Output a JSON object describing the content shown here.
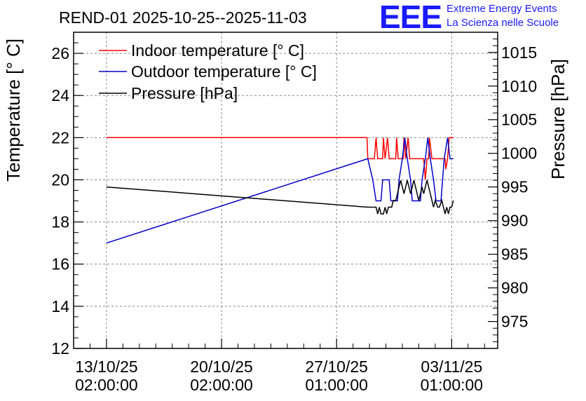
{
  "chart_data": {
    "type": "line",
    "title": "REND-01 2025-10-25--2025-11-03",
    "logo": {
      "mark": "EEE",
      "line1": "Extreme Energy Events",
      "line2": "La Scienza nelle Scuole",
      "color": "#1a1aff"
    },
    "xlabel": "",
    "ylabel_left": "Temperature [° C]",
    "ylabel_right": "Pressure [hPa]",
    "x_ticks": [
      {
        "day": 0,
        "line1": "13/10/25",
        "line2": "02:00:00"
      },
      {
        "day": 7,
        "line1": "20/10/25",
        "line2": "02:00:00"
      },
      {
        "day": 14,
        "line1": "27/10/25",
        "line2": "01:00:00"
      },
      {
        "day": 21,
        "line1": "03/11/25",
        "line2": "01:00:00"
      }
    ],
    "xlim": [
      -2,
      23.8
    ],
    "ylim_left": [
      12,
      27
    ],
    "yticks_left": [
      12,
      14,
      16,
      18,
      20,
      22,
      24,
      26
    ],
    "ylim_right": [
      971,
      1018
    ],
    "yticks_right": [
      975,
      980,
      985,
      990,
      995,
      1000,
      1005,
      1010,
      1015
    ],
    "grid": true,
    "legend_position": "top-left",
    "series": [
      {
        "name": "Indoor temperature [° C]",
        "axis": "left",
        "color": "#ff0000",
        "points": [
          [
            0,
            22
          ],
          [
            15.85,
            22
          ],
          [
            15.9,
            21
          ],
          [
            16.3,
            21
          ],
          [
            16.4,
            22
          ],
          [
            16.5,
            21
          ],
          [
            16.8,
            21
          ],
          [
            16.85,
            22
          ],
          [
            16.95,
            21
          ],
          [
            17.1,
            22
          ],
          [
            17.2,
            21
          ],
          [
            17.6,
            21
          ],
          [
            17.65,
            22
          ],
          [
            17.75,
            21
          ],
          [
            18.05,
            21
          ],
          [
            18.1,
            22
          ],
          [
            18.2,
            21
          ],
          [
            18.35,
            22
          ],
          [
            18.45,
            21
          ],
          [
            19.3,
            21
          ],
          [
            19.35,
            20.5
          ],
          [
            19.4,
            20
          ],
          [
            19.5,
            21
          ],
          [
            19.6,
            21
          ],
          [
            19.65,
            22
          ],
          [
            19.8,
            21
          ],
          [
            20.6,
            21
          ],
          [
            20.65,
            20.5
          ],
          [
            20.75,
            21
          ],
          [
            20.85,
            22
          ],
          [
            21.1,
            22
          ]
        ]
      },
      {
        "name": "Outdoor temperature [° C]",
        "axis": "left",
        "color": "#0000cc",
        "points": [
          [
            0,
            17
          ],
          [
            15.9,
            21
          ],
          [
            16.2,
            20
          ],
          [
            16.4,
            19
          ],
          [
            16.7,
            19
          ],
          [
            16.8,
            20
          ],
          [
            17.2,
            20
          ],
          [
            17.3,
            19
          ],
          [
            17.7,
            19
          ],
          [
            17.8,
            20
          ],
          [
            18.0,
            21
          ],
          [
            18.15,
            22
          ],
          [
            18.3,
            21
          ],
          [
            18.5,
            20
          ],
          [
            18.6,
            19
          ],
          [
            19.1,
            19
          ],
          [
            19.2,
            20
          ],
          [
            19.4,
            21
          ],
          [
            19.55,
            22
          ],
          [
            19.7,
            21
          ],
          [
            19.9,
            20
          ],
          [
            20.05,
            19
          ],
          [
            20.35,
            19
          ],
          [
            20.45,
            20
          ],
          [
            20.55,
            21
          ],
          [
            20.75,
            22
          ],
          [
            20.9,
            21
          ],
          [
            21.1,
            21
          ]
        ]
      },
      {
        "name": "Pressure [hPa]",
        "axis": "right",
        "color": "#000000",
        "points": [
          [
            0,
            995
          ],
          [
            15.9,
            992
          ],
          [
            16.4,
            992
          ],
          [
            16.5,
            991
          ],
          [
            16.6,
            992
          ],
          [
            16.7,
            991
          ],
          [
            16.85,
            991
          ],
          [
            16.95,
            992
          ],
          [
            17.05,
            991
          ],
          [
            17.15,
            992
          ],
          [
            17.35,
            992
          ],
          [
            17.45,
            993
          ],
          [
            17.6,
            993
          ],
          [
            17.7,
            994
          ],
          [
            17.8,
            995
          ],
          [
            17.9,
            996
          ],
          [
            18.0,
            995
          ],
          [
            18.1,
            994
          ],
          [
            18.2,
            995
          ],
          [
            18.3,
            996
          ],
          [
            18.4,
            995
          ],
          [
            18.5,
            994
          ],
          [
            18.6,
            995
          ],
          [
            18.7,
            996
          ],
          [
            18.8,
            995
          ],
          [
            18.9,
            994
          ],
          [
            19.0,
            993
          ],
          [
            19.1,
            994
          ],
          [
            19.2,
            995
          ],
          [
            19.3,
            994
          ],
          [
            19.4,
            995
          ],
          [
            19.5,
            996
          ],
          [
            19.6,
            995
          ],
          [
            19.7,
            994
          ],
          [
            19.8,
            993
          ],
          [
            19.9,
            992
          ],
          [
            20.0,
            993
          ],
          [
            20.15,
            992
          ],
          [
            20.25,
            992
          ],
          [
            20.4,
            993
          ],
          [
            20.5,
            992
          ],
          [
            20.6,
            991
          ],
          [
            20.7,
            992
          ],
          [
            20.8,
            991
          ],
          [
            20.9,
            992
          ],
          [
            21.0,
            992
          ],
          [
            21.1,
            993
          ]
        ]
      }
    ]
  }
}
